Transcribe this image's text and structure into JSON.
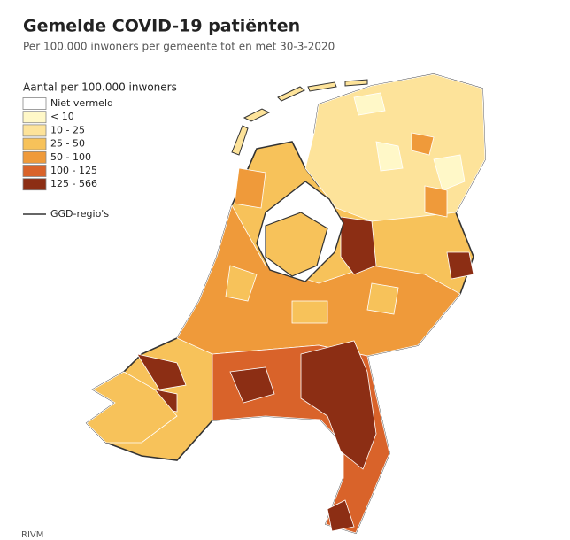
{
  "header": {
    "title": "Gemelde COVID-19 patiënten",
    "subtitle": "Per 100.000 inwoners per gemeente tot en met 30-3-2020"
  },
  "legend": {
    "title": "Aantal per 100.000 inwoners",
    "items": [
      {
        "label": "Niet vermeld",
        "color": "#ffffff"
      },
      {
        "label": "< 10",
        "color": "#fff8c8"
      },
      {
        "label": "10 - 25",
        "color": "#fde39a"
      },
      {
        "label": "25 - 50",
        "color": "#f7c25a"
      },
      {
        "label": "50 - 100",
        "color": "#ef9a3a"
      },
      {
        "label": "100 - 125",
        "color": "#d9632a"
      },
      {
        "label": "125 - 566",
        "color": "#8c2e14"
      }
    ],
    "boundary": "GGD-regio's"
  },
  "source": "RIVM"
}
